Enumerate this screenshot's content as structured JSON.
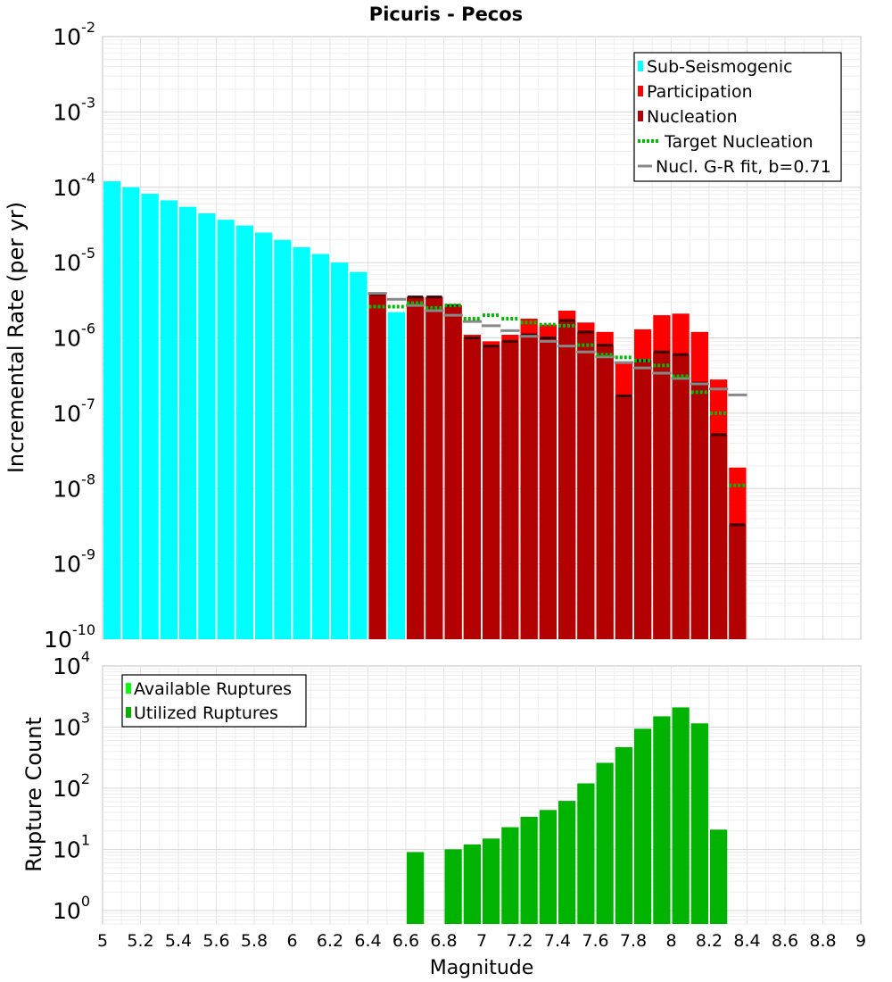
{
  "chart_data": [
    {
      "type": "bar",
      "title": "Picuris - Pecos",
      "xlabel": "",
      "ylabel": "Incremental Rate (per yr)",
      "xlim": [
        5,
        9
      ],
      "ylim": [
        1e-10,
        0.01
      ],
      "y_scale": "log",
      "grid": true,
      "legend_placement": "top-right",
      "bin_width": 0.1,
      "legend": [
        {
          "label": "Sub-Seismogenic",
          "style": "bar",
          "color": "#00ffff"
        },
        {
          "label": "Participation",
          "style": "bar",
          "color": "#ff0000"
        },
        {
          "label": "Nucleation",
          "style": "bar",
          "color": "#b30000"
        },
        {
          "label": "Target Nucleation",
          "style": "dotted",
          "color": "#00bb00"
        },
        {
          "label": "Nucl. G-R fit, b=0.71",
          "style": "line",
          "color": "#888888"
        }
      ],
      "series": [
        {
          "name": "Sub-Seismogenic",
          "color": "#00ffff",
          "x": [
            5.05,
            5.15,
            5.25,
            5.35,
            5.45,
            5.55,
            5.65,
            5.75,
            5.85,
            5.95,
            6.05,
            6.15,
            6.25,
            6.35,
            6.55
          ],
          "values": [
            0.00012,
            0.0001,
            8.2e-05,
            6.7e-05,
            5.5e-05,
            4.5e-05,
            3.7e-05,
            3.1e-05,
            2.5e-05,
            2e-05,
            1.6e-05,
            1.3e-05,
            1e-05,
            7.5e-06,
            2.2e-06
          ]
        },
        {
          "name": "Participation",
          "color": "#ff0000",
          "x": [
            6.45,
            6.65,
            6.75,
            6.85,
            6.95,
            7.05,
            7.15,
            7.25,
            7.35,
            7.45,
            7.55,
            7.65,
            7.75,
            7.85,
            7.95,
            8.05,
            8.15,
            8.25,
            8.35
          ],
          "values": [
            3.8e-06,
            3.5e-06,
            3.5e-06,
            2.7e-06,
            1.1e-06,
            9e-07,
            1.1e-06,
            1.8e-06,
            1.5e-06,
            2.3e-06,
            1.6e-06,
            1.2e-06,
            4.7e-07,
            1.3e-06,
            2e-06,
            2.1e-06,
            1.2e-06,
            2.8e-07,
            1.9e-08
          ]
        },
        {
          "name": "Nucleation",
          "color": "#b30000",
          "x": [
            6.45,
            6.65,
            6.75,
            6.85,
            6.95,
            7.05,
            7.15,
            7.25,
            7.35,
            7.45,
            7.55,
            7.65,
            7.75,
            7.85,
            7.95,
            8.05,
            8.15,
            8.25,
            8.35
          ],
          "values": [
            3.8e-06,
            3.5e-06,
            3.5e-06,
            2.7e-06,
            1e-06,
            7.8e-07,
            9e-07,
            1.1e-06,
            1e-06,
            1.7e-06,
            1.2e-06,
            8e-07,
            1.7e-07,
            5e-07,
            6.5e-07,
            6e-07,
            2.5e-07,
            5.2e-08,
            3.3e-09
          ]
        },
        {
          "name": "Target Nucleation",
          "color": "#00bb00",
          "x": [
            6.45,
            6.55,
            6.65,
            6.75,
            6.85,
            6.95,
            7.05,
            7.15,
            7.25,
            7.35,
            7.45,
            7.55,
            7.65,
            7.75,
            7.85,
            7.95,
            8.05,
            8.15,
            8.25,
            8.35
          ],
          "values": [
            2.6e-06,
            2.6e-06,
            2.9e-06,
            2.5e-06,
            2.7e-06,
            1.8e-06,
            2e-06,
            1.8e-06,
            1.6e-06,
            1.5e-06,
            1.45e-06,
            8e-07,
            6e-07,
            5.5e-07,
            5e-07,
            4.3e-07,
            3.1e-07,
            1.9e-07,
            1e-07,
            1.1e-08
          ]
        },
        {
          "name": "Nucl. G-R fit, b=0.71",
          "color": "#888888",
          "x": [
            6.45,
            6.55,
            6.65,
            6.75,
            6.85,
            6.95,
            7.05,
            7.15,
            7.25,
            7.35,
            7.45,
            7.55,
            7.65,
            7.75,
            7.85,
            7.95,
            8.05,
            8.15,
            8.25,
            8.35
          ],
          "values": [
            3.9e-06,
            3.25e-06,
            2.7e-06,
            2.3e-06,
            2e-06,
            1.65e-06,
            1.45e-06,
            1.25e-06,
            1.05e-06,
            9e-07,
            7.8e-07,
            6.5e-07,
            5.6e-07,
            4.7e-07,
            4e-07,
            3.4e-07,
            2.9e-07,
            2.45e-07,
            2.1e-07,
            1.75e-07
          ]
        }
      ],
      "x_ticks": [],
      "y_ticks": [
        {
          "base": "10",
          "exp": "-10"
        },
        {
          "base": "10",
          "exp": "-9"
        },
        {
          "base": "10",
          "exp": "-8"
        },
        {
          "base": "10",
          "exp": "-7"
        },
        {
          "base": "10",
          "exp": "-6"
        },
        {
          "base": "10",
          "exp": "-5"
        },
        {
          "base": "10",
          "exp": "-4"
        },
        {
          "base": "10",
          "exp": "-3"
        },
        {
          "base": "10",
          "exp": "-2"
        }
      ]
    },
    {
      "type": "bar",
      "title": "",
      "xlabel": "Magnitude",
      "ylabel": "Rupture Count",
      "xlim": [
        5,
        9
      ],
      "ylim": [
        0.6,
        10000
      ],
      "y_scale": "log",
      "grid": true,
      "legend_placement": "top-left",
      "bin_width": 0.1,
      "legend": [
        {
          "label": "Available Ruptures",
          "style": "bar",
          "color": "#00ff00"
        },
        {
          "label": "Utilized Ruptures",
          "style": "bar",
          "color": "#00b300"
        }
      ],
      "series": [
        {
          "name": "Utilized Ruptures",
          "color": "#00b300",
          "x": [
            6.65,
            6.85,
            6.95,
            7.05,
            7.15,
            7.25,
            7.35,
            7.45,
            7.55,
            7.65,
            7.75,
            7.85,
            7.95,
            8.05,
            8.15,
            8.25
          ],
          "values": [
            9,
            10,
            12,
            15,
            23,
            34,
            44,
            62,
            120,
            260,
            470,
            940,
            1500,
            2100,
            1150,
            21
          ]
        }
      ],
      "x_ticks": [
        "5",
        "5.2",
        "5.4",
        "5.6",
        "5.8",
        "6",
        "6.2",
        "6.4",
        "6.6",
        "6.8",
        "7",
        "7.2",
        "7.4",
        "7.6",
        "7.8",
        "8",
        "8.2",
        "8.4",
        "8.6",
        "8.8",
        "9"
      ],
      "y_ticks": [
        {
          "base": "10",
          "exp": "0"
        },
        {
          "base": "10",
          "exp": "1"
        },
        {
          "base": "10",
          "exp": "2"
        },
        {
          "base": "10",
          "exp": "3"
        },
        {
          "base": "10",
          "exp": "4"
        }
      ]
    }
  ]
}
